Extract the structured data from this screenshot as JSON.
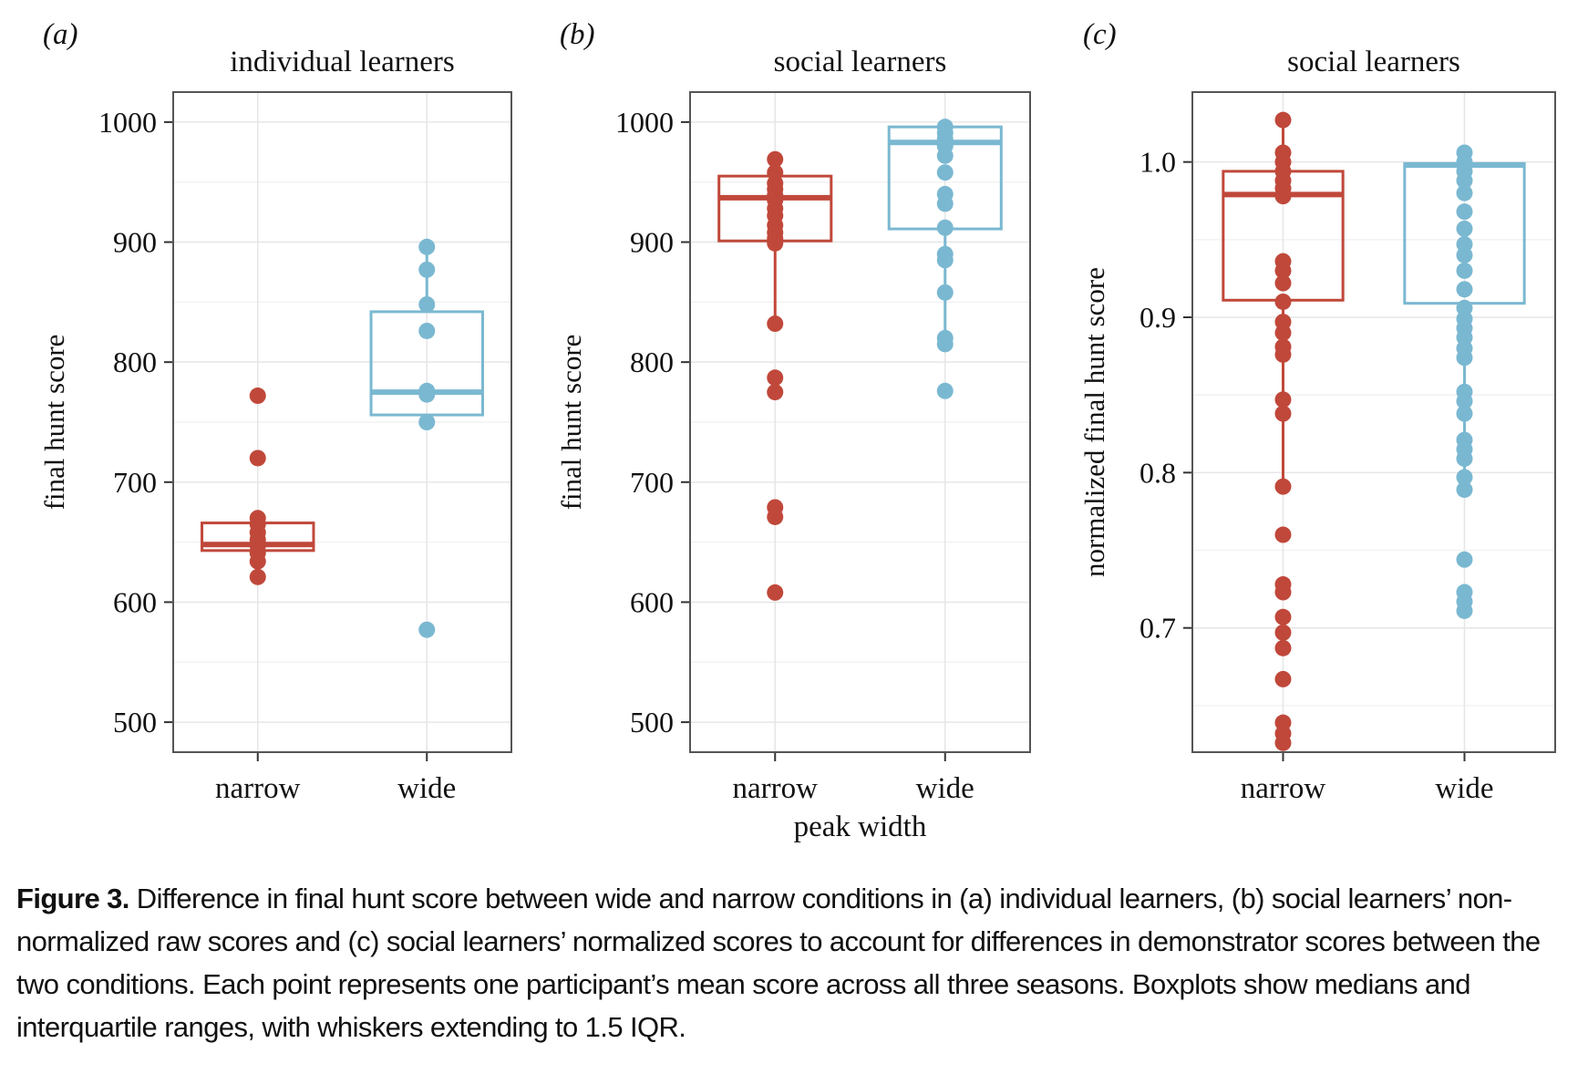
{
  "chart_data": [
    {
      "panel": "(a)",
      "type": "box",
      "title": "individual learners",
      "ylabel": "final hunt score",
      "xlabel": "",
      "ylim": [
        475,
        1025
      ],
      "yticks": [
        500,
        600,
        700,
        800,
        900,
        1000
      ],
      "ytick_labels": [
        "500",
        "600",
        "700",
        "800",
        "900",
        "1000"
      ],
      "categories": [
        "narrow",
        "wide"
      ],
      "colors": [
        "#c0483a",
        "#7ab8d1"
      ],
      "boxes": [
        {
          "q1": 643,
          "median": 648,
          "q3": 666,
          "whisker_low": 643,
          "whisker_high": 666
        },
        {
          "q1": 756,
          "median": 775,
          "q3": 842,
          "whisker_low": 756,
          "whisker_high": 842
        }
      ],
      "points": [
        [
          772,
          720,
          670,
          665,
          658,
          652,
          647,
          641,
          634,
          621
        ],
        [
          896,
          877,
          848,
          826,
          776,
          773,
          750,
          577
        ]
      ]
    },
    {
      "panel": "(b)",
      "type": "box",
      "title": "social learners",
      "ylabel": "final hunt score",
      "xlabel": "peak width",
      "ylim": [
        475,
        1025
      ],
      "yticks": [
        500,
        600,
        700,
        800,
        900,
        1000
      ],
      "ytick_labels": [
        "500",
        "600",
        "700",
        "800",
        "900",
        "1000"
      ],
      "categories": [
        "narrow",
        "wide"
      ],
      "colors": [
        "#c0483a",
        "#7ab8d1"
      ],
      "boxes": [
        {
          "q1": 901,
          "median": 937,
          "q3": 955,
          "whisker_low": 901,
          "whisker_high": 955
        },
        {
          "q1": 911,
          "median": 983,
          "q3": 996,
          "whisker_low": 911,
          "whisker_high": 996
        }
      ],
      "points": [
        [
          969,
          958,
          949,
          944,
          939,
          935,
          928,
          922,
          914,
          908,
          903,
          899,
          832,
          787,
          775,
          679,
          671,
          608
        ],
        [
          996,
          991,
          986,
          980,
          972,
          958,
          940,
          932,
          912,
          890,
          885,
          858,
          820,
          815,
          776
        ]
      ]
    },
    {
      "panel": "(c)",
      "type": "box",
      "title": "social learners",
      "ylabel": "normalized final hunt score",
      "xlabel": "",
      "ylim": [
        0.62,
        1.045
      ],
      "yticks": [
        0.7,
        0.8,
        0.9,
        1.0
      ],
      "ytick_labels": [
        "0.7",
        "0.8",
        "0.9",
        "1.0"
      ],
      "categories": [
        "narrow",
        "wide"
      ],
      "colors": [
        "#c0483a",
        "#7ab8d1"
      ],
      "boxes": [
        {
          "q1": 0.911,
          "median": 0.979,
          "q3": 0.994,
          "whisker_low": 0.911,
          "whisker_high": 0.994
        },
        {
          "q1": 0.909,
          "median": 0.998,
          "q3": 0.999,
          "whisker_low": 0.909,
          "whisker_high": 0.999
        }
      ],
      "points": [
        [
          1.027,
          1.006,
          1.0,
          0.994,
          0.988,
          0.983,
          0.978,
          0.936,
          0.93,
          0.922,
          0.91,
          0.897,
          0.89,
          0.881,
          0.876,
          0.847,
          0.838,
          0.791,
          0.76,
          0.728,
          0.723,
          0.707,
          0.697,
          0.687,
          0.667,
          0.639,
          0.632,
          0.626
        ],
        [
          1.006,
          1.0,
          0.994,
          0.988,
          0.98,
          0.968,
          0.957,
          0.947,
          0.94,
          0.93,
          0.918,
          0.906,
          0.899,
          0.893,
          0.887,
          0.88,
          0.874,
          0.852,
          0.846,
          0.838,
          0.821,
          0.815,
          0.809,
          0.797,
          0.789,
          0.744,
          0.723,
          0.717,
          0.711
        ]
      ]
    }
  ],
  "caption": {
    "label": "Figure 3.",
    "text": "Difference in final hunt score between wide and narrow conditions in (a) individual learners, (b) social learners’ non-normalized raw scores and (c) social learners’ normalized scores to account for differences in demonstrator scores between the two conditions. Each point represents one participant’s mean score across all three seasons. Boxplots show medians and interquartile ranges, with whiskers extending to 1.5 IQR."
  }
}
